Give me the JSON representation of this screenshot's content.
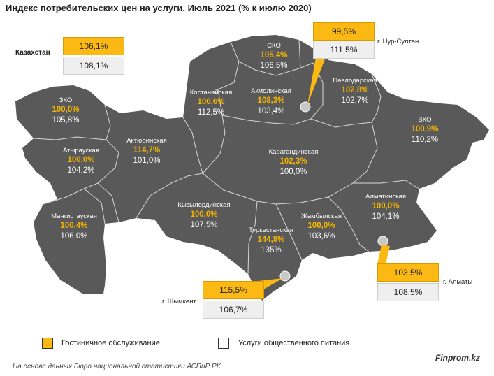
{
  "title": "Индекс потребительских цен на услуги. Июль 2021 (% к июлю 2020)",
  "colors": {
    "map": "#595959",
    "border": "#d9d9d9",
    "hotel": "#fdb913",
    "catering": "#efefef"
  },
  "national": {
    "name": "Казахстан",
    "hotel": "106,1%",
    "catering": "108,1%"
  },
  "regions": {
    "zko": {
      "name": "ЗКО",
      "hotel": "100,0%",
      "catering": "105,8%"
    },
    "atyrau": {
      "name": "Атырауская",
      "hotel": "100,0%",
      "catering": "104,2%"
    },
    "mangystau": {
      "name": "Мангистауская",
      "hotel": "100,4%",
      "catering": "106,0%"
    },
    "aktobe": {
      "name": "Актюбинская",
      "hotel": "114,7%",
      "catering": "101,0%"
    },
    "kostanay": {
      "name": "Костанайская",
      "hotel": "106,6%",
      "catering": "112,5%"
    },
    "sko": {
      "name": "СКО",
      "hotel": "105,4%",
      "catering": "106,5%"
    },
    "akmola": {
      "name": "Акмолинская",
      "hotel": "108,3%",
      "catering": "103,4%"
    },
    "pavlodar": {
      "name": "Павлодарская",
      "hotel": "102,8%",
      "catering": "102,7%"
    },
    "vko": {
      "name": "ВКО",
      "hotel": "100,9%",
      "catering": "110,2%"
    },
    "karaganda": {
      "name": "Карагандинская",
      "hotel": "102,3%",
      "catering": "100,0%"
    },
    "kyzylorda": {
      "name": "Кызылординская",
      "hotel": "100,0%",
      "catering": "107,5%"
    },
    "turkestan": {
      "name": "Туркестанская",
      "hotel": "144,9%",
      "catering": "135%"
    },
    "zhambyl": {
      "name": "Жамбылская",
      "hotel": "100,0%",
      "catering": "103,6%"
    },
    "almaty_reg": {
      "name": "Алматинская",
      "hotel": "100,0%",
      "catering": "104,1%"
    }
  },
  "cities": {
    "nursultan": {
      "name": "г. Нур-Султан",
      "hotel": "99,5%",
      "catering": "111,5%"
    },
    "almaty": {
      "name": "г. Алматы",
      "hotel": "103,5%",
      "catering": "108,5%"
    },
    "shymkent": {
      "name": "г. Шымкент",
      "hotel": "115,5%",
      "catering": "106,7%"
    }
  },
  "legend": {
    "hotel": "Гостиничное обслуживание",
    "catering": "Услуги общественного питания"
  },
  "footer": "На основе данных Бюро национальной статистики АСПиР РК",
  "brand": "Finprom.kz"
}
